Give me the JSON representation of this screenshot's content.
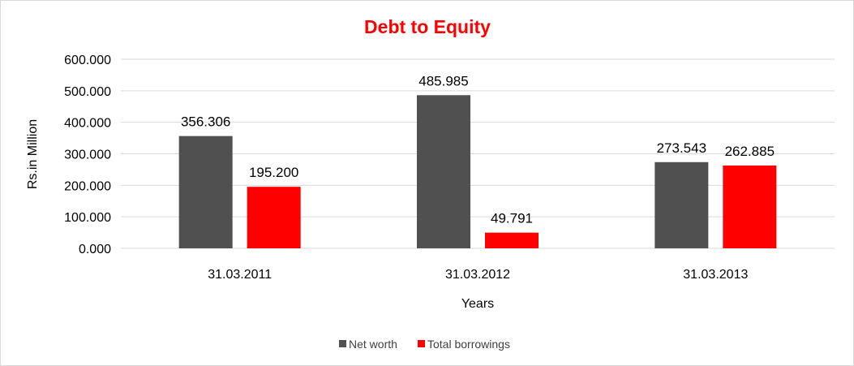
{
  "chart_data": {
    "type": "bar",
    "title": "Debt to Equity",
    "title_color": "#ff0000",
    "xlabel": "Years",
    "ylabel": "Rs.in Million",
    "categories": [
      "31.03.2011",
      "31.03.2012",
      "31.03.2013"
    ],
    "series": [
      {
        "name": "Net worth",
        "color": "#505050",
        "values": [
          356.306,
          485.985,
          273.543
        ]
      },
      {
        "name": "Total borrowings",
        "color": "#ff0000",
        "values": [
          195.2,
          49.791,
          262.885
        ]
      }
    ],
    "ylim": [
      0,
      600
    ],
    "yticks": [
      0,
      100,
      200,
      300,
      400,
      500,
      600
    ],
    "ytick_labels": [
      "0.000",
      "100.000",
      "200.000",
      "300.000",
      "400.000",
      "500.000",
      "600.000"
    ],
    "data_labels": [
      [
        "356.306",
        "485.985",
        "273.543"
      ],
      [
        "195.200",
        "49.791",
        "262.885"
      ]
    ],
    "grid": true,
    "legend": "bottom"
  }
}
